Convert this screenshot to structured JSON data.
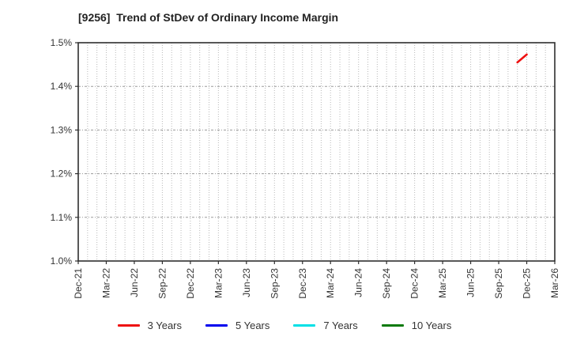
{
  "title": "[9256]  Trend of StDev of Ordinary Income Margin",
  "chart_data": {
    "type": "line",
    "title": "[9256]  Trend of StDev of Ordinary Income Margin",
    "x_axis": {
      "tick_labels": [
        "Dec-21",
        "Mar-22",
        "Jun-22",
        "Sep-22",
        "Dec-22",
        "Mar-23",
        "Jun-23",
        "Sep-23",
        "Dec-23",
        "Mar-24",
        "Jun-24",
        "Sep-24",
        "Dec-24",
        "Mar-25",
        "Jun-25",
        "Sep-25",
        "Dec-25",
        "Mar-26"
      ],
      "months_per_tick": 3,
      "total_months": 51,
      "label_rotation_deg": -90
    },
    "y_axis": {
      "tick_labels": [
        "1.0%",
        "1.1%",
        "1.2%",
        "1.3%",
        "1.4%",
        "1.5%"
      ],
      "min": 1.0,
      "max": 1.5,
      "unit": "%"
    },
    "grid": {
      "vertical": "monthly dotted",
      "horizontal": "dotted at each 0.1%"
    },
    "legend_position": "bottom",
    "series": [
      {
        "name": "3 Years",
        "color": "#ee1111",
        "points": [
          {
            "label": "Nov-25",
            "month_index": 47,
            "value": 1.455
          },
          {
            "label": "Dec-25",
            "month_index": 48,
            "value": 1.473
          }
        ]
      },
      {
        "name": "5 Years",
        "color": "#0000ee",
        "points": []
      },
      {
        "name": "7 Years",
        "color": "#00e0e6",
        "points": []
      },
      {
        "name": "10 Years",
        "color": "#0b7a0b",
        "points": []
      }
    ]
  },
  "legend": [
    {
      "label": "3 Years",
      "color": "#ee1111"
    },
    {
      "label": "5 Years",
      "color": "#0000ee"
    },
    {
      "label": "7 Years",
      "color": "#00e0e6"
    },
    {
      "label": "10 Years",
      "color": "#0b7a0b"
    }
  ]
}
